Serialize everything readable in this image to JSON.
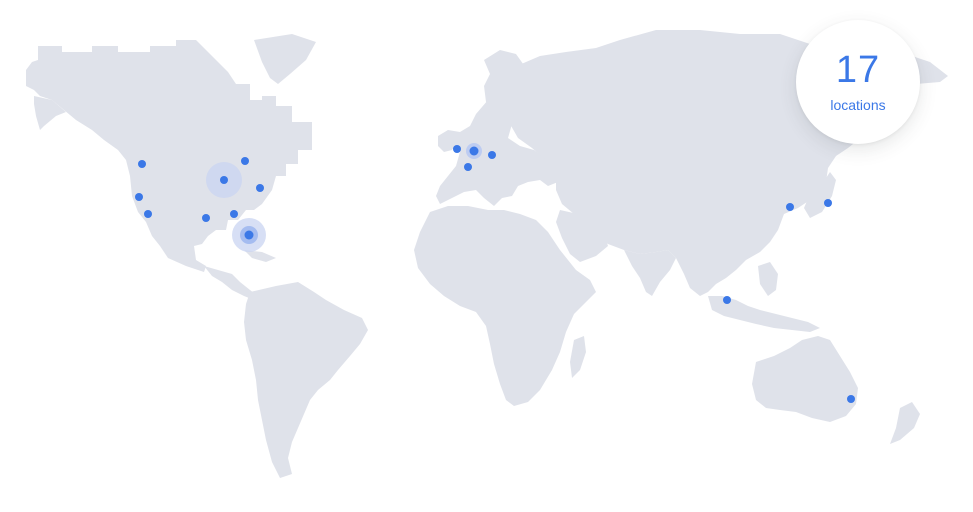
{
  "badge": {
    "count": "17",
    "label": "locations"
  },
  "colors": {
    "land": "#dfe2ea",
    "location_dot": "#3b78e7",
    "badge_text": "#3b78e7",
    "background": "#ffffff"
  },
  "locations": [
    {
      "region": "north-america-west",
      "highlight": "none"
    },
    {
      "region": "north-america-west",
      "highlight": "none"
    },
    {
      "region": "north-america-west",
      "highlight": "none"
    },
    {
      "region": "north-america-central",
      "highlight": "large-halo"
    },
    {
      "region": "north-america-east",
      "highlight": "none"
    },
    {
      "region": "north-america-east",
      "highlight": "none"
    },
    {
      "region": "north-america-south",
      "highlight": "none"
    },
    {
      "region": "north-america-south",
      "highlight": "none"
    },
    {
      "region": "north-america-southeast",
      "highlight": "ring-halo"
    },
    {
      "region": "europe-west",
      "highlight": "none"
    },
    {
      "region": "europe-west",
      "highlight": "small-halo"
    },
    {
      "region": "europe-west",
      "highlight": "none"
    },
    {
      "region": "europe-central",
      "highlight": "none"
    },
    {
      "region": "asia-east",
      "highlight": "none"
    },
    {
      "region": "asia-east",
      "highlight": "none"
    },
    {
      "region": "asia-southeast",
      "highlight": "none"
    },
    {
      "region": "oceania",
      "highlight": "none"
    }
  ]
}
